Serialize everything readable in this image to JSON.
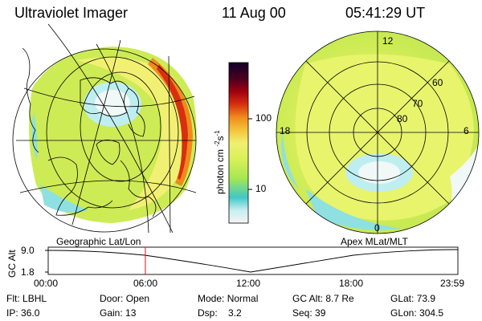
{
  "header": {
    "instrument": "Ultraviolet Imager",
    "date": "11 Aug 00",
    "time": "05:41:29 UT"
  },
  "left_panel": {
    "caption": "Geographic Lat/Lon"
  },
  "right_panel": {
    "caption": "Apex MLat/MLT",
    "mlt_labels": [
      "12",
      "18",
      "6",
      "0"
    ],
    "lat_labels": [
      "60",
      "70",
      "80"
    ]
  },
  "colorbar": {
    "unit_label": "photon cm",
    "unit_exp1": "-2",
    "unit_mid": "s",
    "unit_exp2": "-1",
    "tick_labels": [
      "100",
      "10"
    ],
    "colors": [
      "#f4f4f4",
      "#8fe0e0",
      "#40c8c8",
      "#a6e850",
      "#d9f05a",
      "#f0f070",
      "#f4c43a",
      "#f08a1c",
      "#d63010",
      "#a00010",
      "#4a0020",
      "#10002a"
    ]
  },
  "timeline": {
    "ylabel": "GC Alt",
    "yticks": [
      "9.0",
      "1.8"
    ],
    "xticks": [
      "00:00",
      "06:00",
      "12:00",
      "18:00",
      "23:59"
    ],
    "marker_time_fraction": 0.2371
  },
  "info": {
    "row1": [
      {
        "label": "Flt:",
        "value": "LBHL"
      },
      {
        "label": "Door:",
        "value": "Open"
      },
      {
        "label": "Mode:",
        "value": "Normal"
      },
      {
        "label": "GC Alt:",
        "value": "8.7 Re"
      },
      {
        "label": "GLat:",
        "value": "73.9"
      }
    ],
    "row2": [
      {
        "label": "IP:",
        "value": "36.0"
      },
      {
        "label": "Gain:",
        "value": "13"
      },
      {
        "label": "Dsp:",
        "value": "3.2"
      },
      {
        "label": "Seq:",
        "value": "39"
      },
      {
        "label": "GLon:",
        "value": "304.5"
      }
    ]
  }
}
